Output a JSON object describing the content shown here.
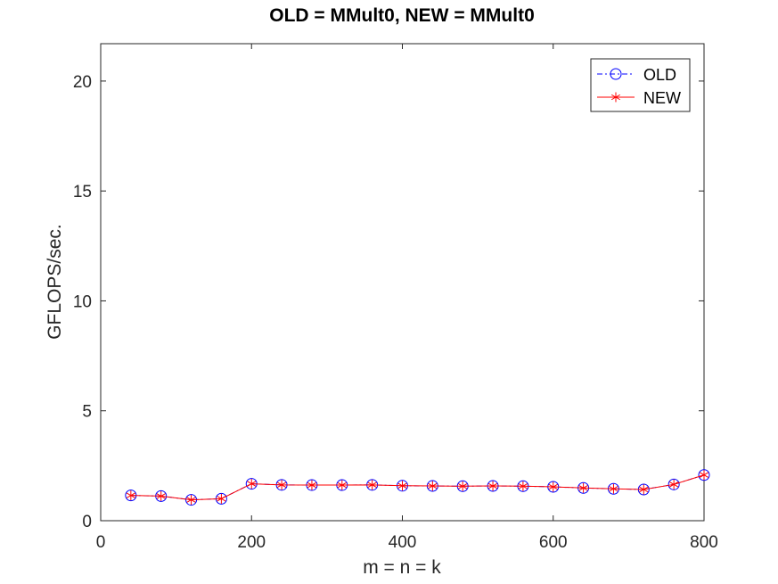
{
  "chart_data": {
    "type": "line",
    "title": "OLD = MMult0, NEW = MMult0",
    "xlabel": "m = n = k",
    "ylabel": "GFLOPS/sec.",
    "xlim": [
      0,
      800
    ],
    "ylim": [
      0,
      21.7
    ],
    "xticks": [
      0,
      200,
      400,
      600,
      800
    ],
    "yticks": [
      0,
      5,
      10,
      15,
      20
    ],
    "grid": false,
    "legend_position": "top-right",
    "x": [
      40,
      80,
      120,
      160,
      200,
      240,
      280,
      320,
      360,
      400,
      440,
      480,
      520,
      560,
      600,
      640,
      680,
      720,
      760,
      800
    ],
    "series": [
      {
        "name": "OLD",
        "color": "#0000ff",
        "line_style": "dash-dot",
        "marker": "circle",
        "values": [
          1.15,
          1.12,
          0.95,
          1.0,
          1.68,
          1.63,
          1.62,
          1.62,
          1.63,
          1.59,
          1.58,
          1.57,
          1.58,
          1.57,
          1.54,
          1.49,
          1.45,
          1.42,
          1.65,
          2.08
        ]
      },
      {
        "name": "NEW",
        "color": "#ff0000",
        "line_style": "solid",
        "marker": "asterisk",
        "values": [
          1.15,
          1.12,
          0.95,
          1.0,
          1.68,
          1.63,
          1.62,
          1.62,
          1.63,
          1.59,
          1.58,
          1.57,
          1.58,
          1.57,
          1.54,
          1.49,
          1.45,
          1.42,
          1.65,
          2.08
        ]
      }
    ]
  }
}
